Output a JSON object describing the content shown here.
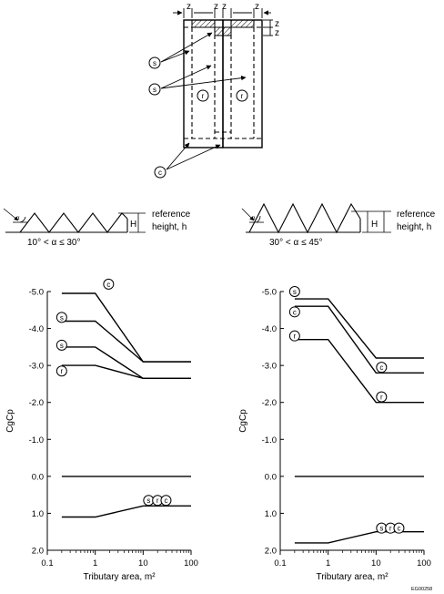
{
  "plan": {
    "z": "z",
    "zone_labels": {
      "s": "s",
      "r": "r",
      "c": "c"
    }
  },
  "profiles": [
    {
      "angle_symbol": "α",
      "height_label": "H",
      "ref_line1": "reference",
      "ref_line2": "height, h",
      "range": "10° < α ≤ 30°"
    },
    {
      "angle_symbol": "α",
      "height_label": "H",
      "ref_line1": "reference",
      "ref_line2": "height, h",
      "range": "30° < α ≤ 45°"
    }
  ],
  "chart_data": [
    {
      "type": "line",
      "xlabel": "Tributary area, m²",
      "ylabel": "CgCp",
      "x_scale": "log",
      "xlim": [
        0.1,
        100
      ],
      "ylim": [
        2.0,
        -5.0
      ],
      "x_ticks": [
        "0.1",
        "1",
        "10",
        "100"
      ],
      "y_ticks": [
        "-5.0",
        "-4.0",
        "-3.0",
        "-2.0",
        "-1.0",
        "0.0",
        "1.0",
        "2.0"
      ],
      "grid": false,
      "series": [
        {
          "name": "c",
          "x": [
            0.2,
            1,
            10,
            100
          ],
          "y": [
            -4.95,
            -4.95,
            -3.1,
            -3.1
          ]
        },
        {
          "name": "s",
          "x": [
            0.2,
            1,
            10,
            100
          ],
          "y": [
            -4.2,
            -4.2,
            -3.1,
            -3.1
          ]
        },
        {
          "name": "s",
          "x": [
            0.2,
            1,
            10,
            100
          ],
          "y": [
            -3.5,
            -3.5,
            -2.65,
            -2.65
          ]
        },
        {
          "name": "r",
          "x": [
            0.2,
            1,
            10,
            100
          ],
          "y": [
            -3.0,
            -3.0,
            -2.65,
            -2.65
          ]
        },
        {
          "name": "",
          "x": [
            0.2,
            100
          ],
          "y": [
            0.0,
            0.0
          ]
        },
        {
          "name": "s, r, c",
          "x": [
            0.2,
            1,
            10,
            100
          ],
          "y": [
            1.1,
            1.1,
            0.8,
            0.8
          ]
        }
      ],
      "markers": [
        {
          "label": "c",
          "x": 1.9,
          "y": -5.2
        },
        {
          "label": "s",
          "x": 0.2,
          "y": -4.3
        },
        {
          "label": "s",
          "x": 0.2,
          "y": -3.55
        },
        {
          "label": "r",
          "x": 0.2,
          "y": -2.85
        },
        {
          "label": "s",
          "x": 13,
          "y": 0.65
        },
        {
          "label": "r",
          "x": 20,
          "y": 0.65
        },
        {
          "label": "c",
          "x": 30,
          "y": 0.65
        }
      ]
    },
    {
      "type": "line",
      "xlabel": "Tributary area, m²",
      "ylabel": "CgCp",
      "x_scale": "log",
      "xlim": [
        0.1,
        100
      ],
      "ylim": [
        2.0,
        -5.0
      ],
      "x_ticks": [
        "0.1",
        "1",
        "10",
        "100"
      ],
      "y_ticks": [
        "-5.0",
        "-4.0",
        "-3.0",
        "-2.0",
        "-1.0",
        "0.0",
        "1.0",
        "2.0"
      ],
      "grid": false,
      "series": [
        {
          "name": "s",
          "x": [
            0.2,
            1,
            10,
            100
          ],
          "y": [
            -4.8,
            -4.8,
            -3.2,
            -3.2
          ]
        },
        {
          "name": "c",
          "x": [
            0.2,
            1,
            10,
            100
          ],
          "y": [
            -4.6,
            -4.6,
            -2.8,
            -2.8
          ]
        },
        {
          "name": "r",
          "x": [
            0.2,
            1,
            10,
            100
          ],
          "y": [
            -3.7,
            -3.7,
            -2.0,
            -2.0
          ]
        },
        {
          "name": "",
          "x": [
            0.2,
            100
          ],
          "y": [
            0.0,
            0.0
          ]
        },
        {
          "name": "s, r, c",
          "x": [
            0.2,
            1,
            10,
            100
          ],
          "y": [
            1.8,
            1.8,
            1.5,
            1.5
          ]
        }
      ],
      "markers": [
        {
          "label": "s",
          "x": 0.2,
          "y": -5.0
        },
        {
          "label": "c",
          "x": 0.2,
          "y": -4.45
        },
        {
          "label": "r",
          "x": 0.2,
          "y": -3.8
        },
        {
          "label": "c",
          "x": 13,
          "y": -2.95
        },
        {
          "label": "r",
          "x": 13,
          "y": -2.15
        },
        {
          "label": "s",
          "x": 13,
          "y": 1.4
        },
        {
          "label": "r",
          "x": 20,
          "y": 1.4
        },
        {
          "label": "c",
          "x": 30,
          "y": 1.4
        }
      ]
    }
  ],
  "figure_id": "EG00258"
}
